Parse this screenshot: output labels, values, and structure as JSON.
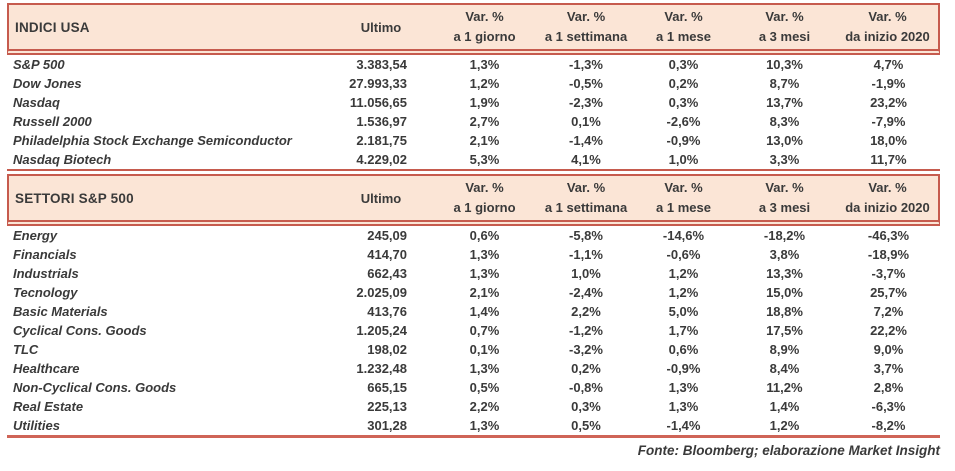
{
  "colors": {
    "header_bg": "#fbe5d6",
    "rule_line": "#c65b4e",
    "text": "#3a3a3a"
  },
  "columns": {
    "ultimo": "Ultimo",
    "var_label": "Var. %",
    "periods": [
      "a 1 giorno",
      "a 1 settimana",
      "a 1 mese",
      "a 3 mesi",
      "da inizio 2020"
    ]
  },
  "tables": [
    {
      "title": "INDICI USA",
      "rows": [
        {
          "label": "S&P 500",
          "ultimo": "3.383,54",
          "var_pct": [
            "1,3%",
            "-1,3%",
            "0,3%",
            "10,3%",
            "4,7%"
          ]
        },
        {
          "label": "Dow Jones",
          "ultimo": "27.993,33",
          "var_pct": [
            "1,2%",
            "-0,5%",
            "0,2%",
            "8,7%",
            "-1,9%"
          ]
        },
        {
          "label": "Nasdaq",
          "ultimo": "11.056,65",
          "var_pct": [
            "1,9%",
            "-2,3%",
            "0,3%",
            "13,7%",
            "23,2%"
          ]
        },
        {
          "label": "Russell 2000",
          "ultimo": "1.536,97",
          "var_pct": [
            "2,7%",
            "0,1%",
            "-2,6%",
            "8,3%",
            "-7,9%"
          ]
        },
        {
          "label": "Philadelphia Stock Exchange Semiconductor",
          "ultimo": "2.181,75",
          "var_pct": [
            "2,1%",
            "-1,4%",
            "-0,9%",
            "13,0%",
            "18,0%"
          ]
        },
        {
          "label": "Nasdaq Biotech",
          "ultimo": "4.229,02",
          "var_pct": [
            "5,3%",
            "4,1%",
            "1,0%",
            "3,3%",
            "11,7%"
          ]
        }
      ]
    },
    {
      "title": "SETTORI S&P 500",
      "rows": [
        {
          "label": "Energy",
          "ultimo": "245,09",
          "var_pct": [
            "0,6%",
            "-5,8%",
            "-14,6%",
            "-18,2%",
            "-46,3%"
          ]
        },
        {
          "label": "Financials",
          "ultimo": "414,70",
          "var_pct": [
            "1,3%",
            "-1,1%",
            "-0,6%",
            "3,8%",
            "-18,9%"
          ]
        },
        {
          "label": "Industrials",
          "ultimo": "662,43",
          "var_pct": [
            "1,3%",
            "1,0%",
            "1,2%",
            "13,3%",
            "-3,7%"
          ]
        },
        {
          "label": "Tecnology",
          "ultimo": "2.025,09",
          "var_pct": [
            "2,1%",
            "-2,4%",
            "1,2%",
            "15,0%",
            "25,7%"
          ]
        },
        {
          "label": "Basic Materials",
          "ultimo": "413,76",
          "var_pct": [
            "1,4%",
            "2,2%",
            "5,0%",
            "18,8%",
            "7,2%"
          ]
        },
        {
          "label": "Cyclical Cons. Goods",
          "ultimo": "1.205,24",
          "var_pct": [
            "0,7%",
            "-1,2%",
            "1,7%",
            "17,5%",
            "22,2%"
          ]
        },
        {
          "label": "TLC",
          "ultimo": "198,02",
          "var_pct": [
            "0,1%",
            "-3,2%",
            "0,6%",
            "8,9%",
            "9,0%"
          ]
        },
        {
          "label": "Healthcare",
          "ultimo": "1.232,48",
          "var_pct": [
            "1,3%",
            "0,2%",
            "-0,9%",
            "8,4%",
            "3,7%"
          ]
        },
        {
          "label": "Non-Cyclical Cons. Goods",
          "ultimo": "665,15",
          "var_pct": [
            "0,5%",
            "-0,8%",
            "1,3%",
            "11,2%",
            "2,8%"
          ]
        },
        {
          "label": "Real Estate",
          "ultimo": "225,13",
          "var_pct": [
            "2,2%",
            "0,3%",
            "1,3%",
            "1,4%",
            "-6,3%"
          ]
        },
        {
          "label": "Utilities",
          "ultimo": "301,28",
          "var_pct": [
            "1,3%",
            "0,5%",
            "-1,4%",
            "1,2%",
            "-8,2%"
          ]
        }
      ]
    }
  ],
  "footer": {
    "source": "Fonte: Bloomberg; elaborazione Market Insight"
  }
}
